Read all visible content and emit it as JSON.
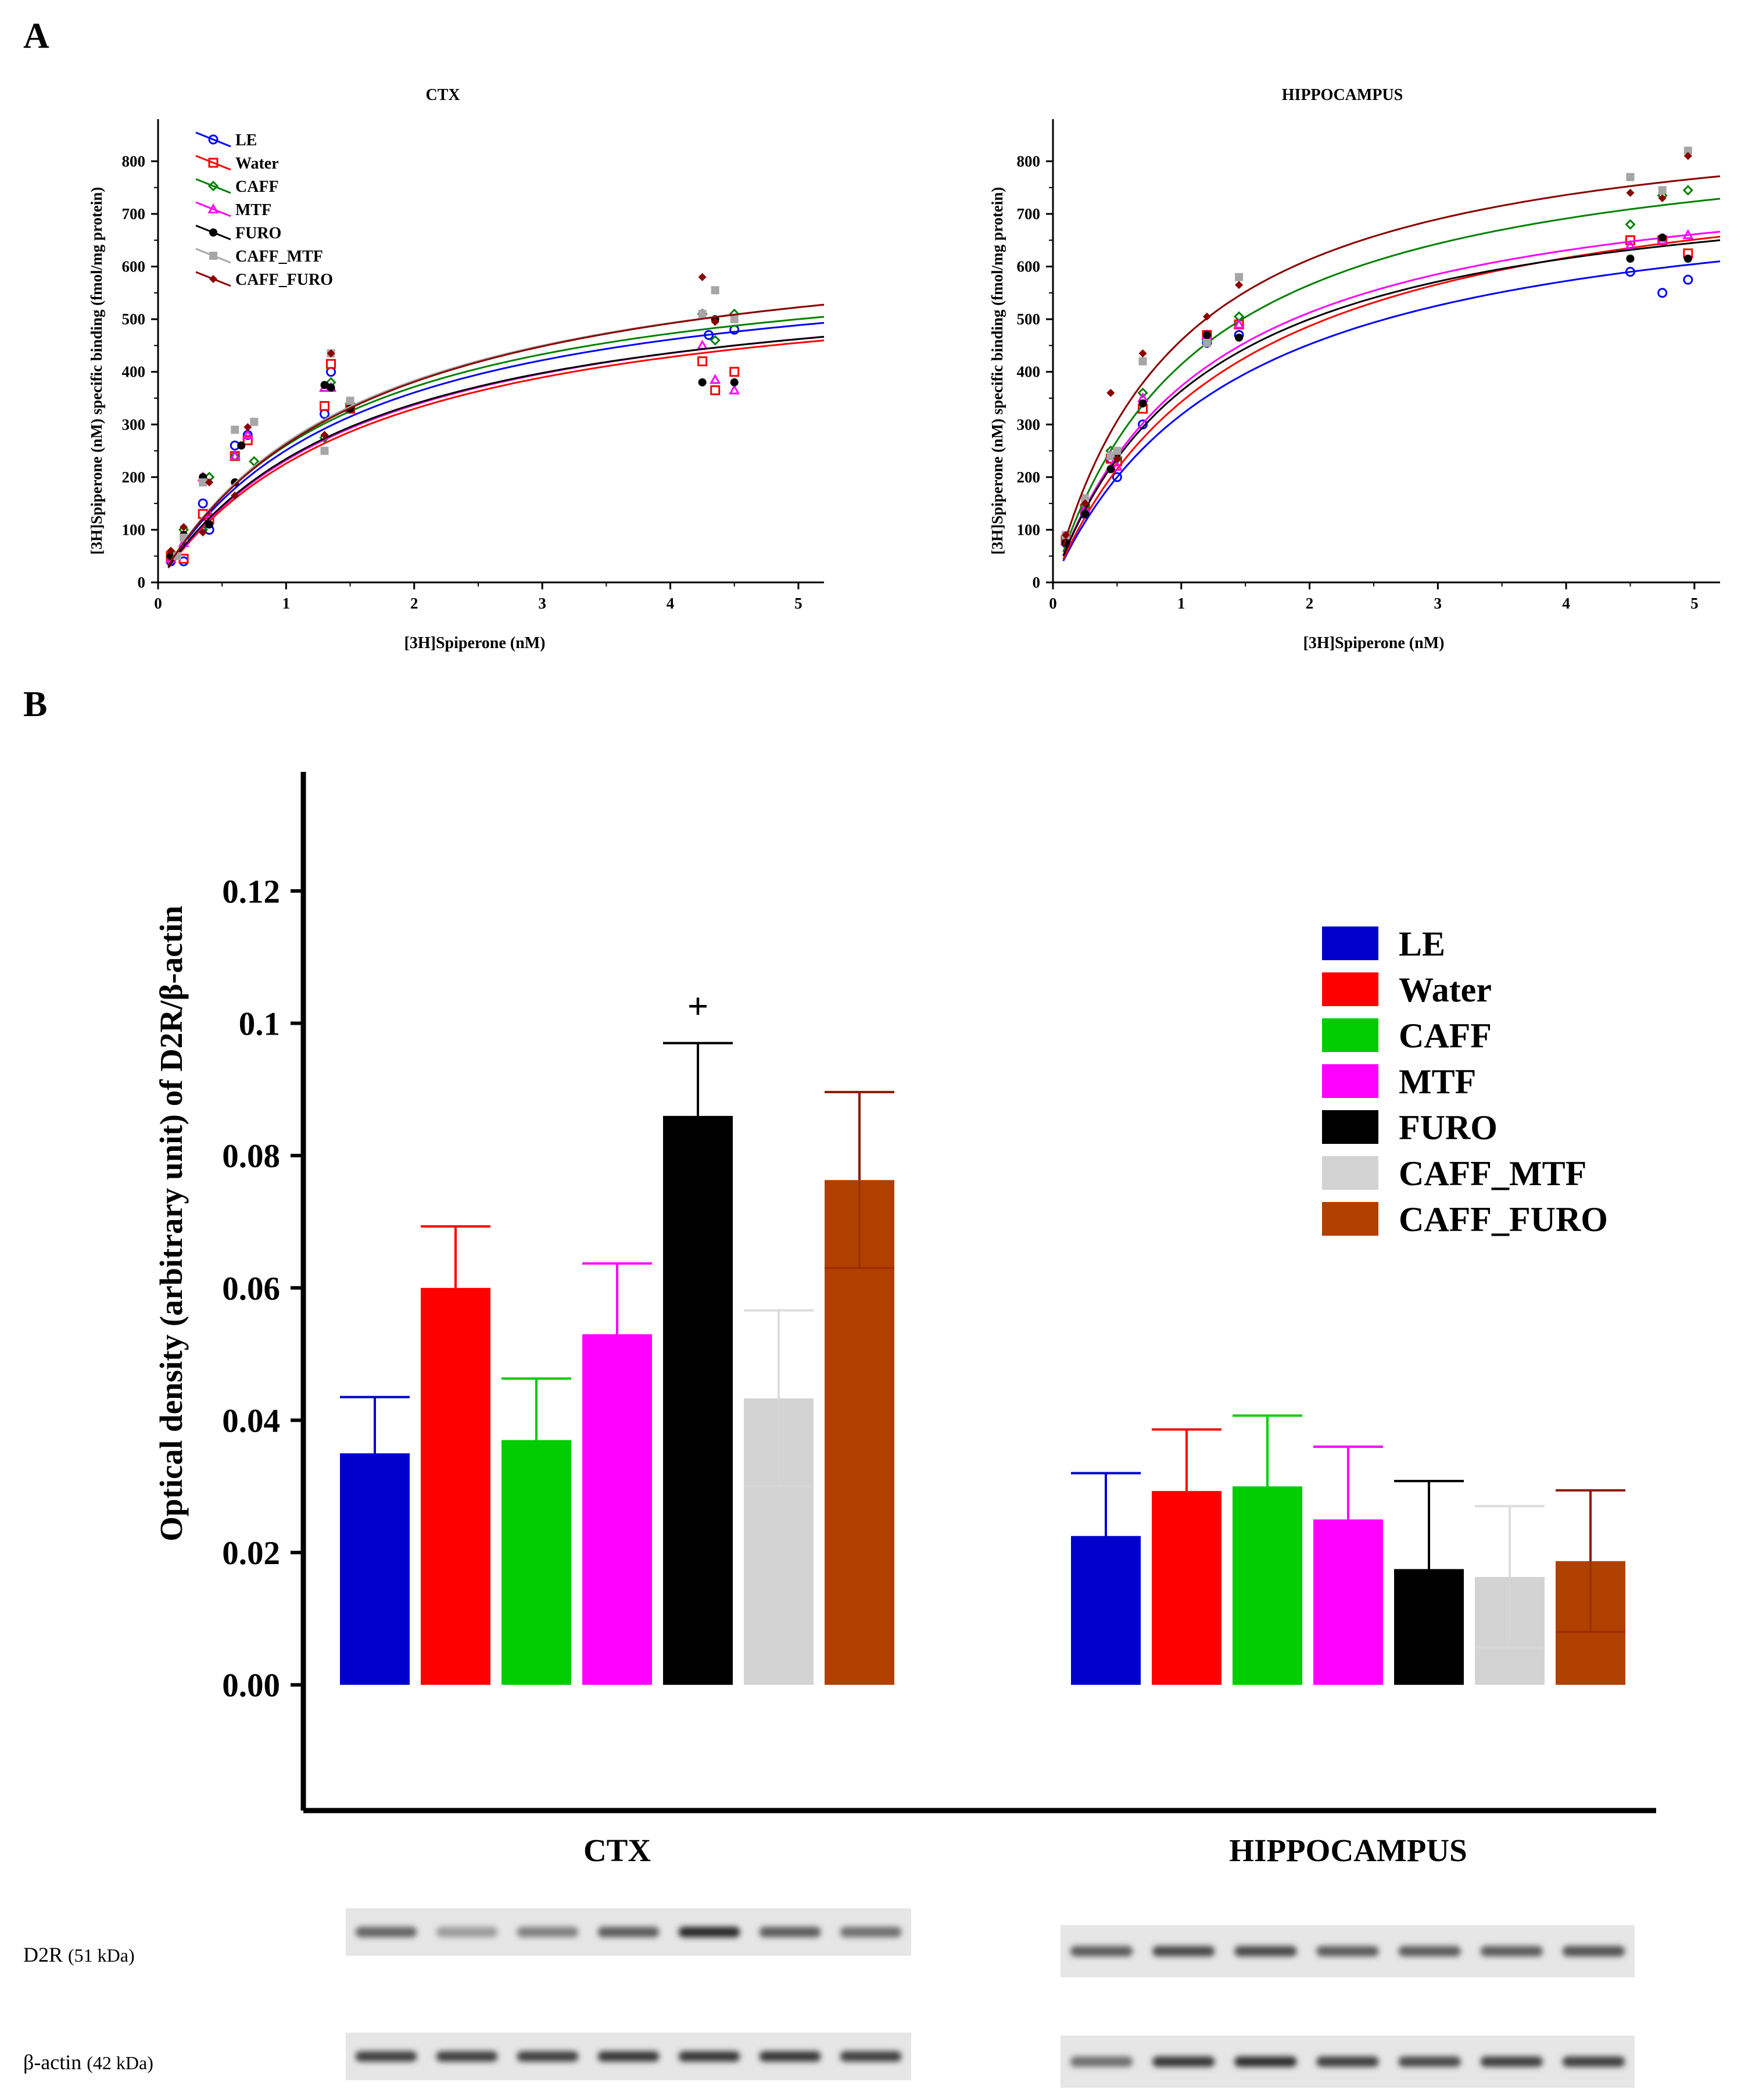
{
  "figure": {
    "panel_a_label": "A",
    "panel_b_label": "B"
  },
  "colors": {
    "LE": "#0000ff",
    "Water": "#ff0000",
    "CAFF": "#008000",
    "MTF": "#ff00ff",
    "FURO": "#000000",
    "CAFF_MTF": "#a6a6a6",
    "CAFF_FURO": "#8b0000",
    "bar_LE": "#0000cc",
    "bar_Water": "#ff0000",
    "bar_CAFF": "#00cc00",
    "bar_MTF": "#ff00ff",
    "bar_FURO": "#000000",
    "bar_CAFF_MTF": "#d3d3d3",
    "bar_CAFF_FURO": "#b04000"
  },
  "chart_data": [
    {
      "type": "scatter",
      "panel": "A",
      "title": "CTX",
      "xlabel": "[3H]Spiperone (nM)",
      "ylabel": "[3H]Spiperone (nM) specific binding (fmol/mg protein)",
      "xlim": [
        0,
        5.2
      ],
      "ylim": [
        0,
        880
      ],
      "xticks": [
        0,
        1,
        2,
        3,
        4,
        5
      ],
      "yticks": [
        0,
        100,
        200,
        300,
        400,
        500,
        600,
        700,
        800
      ],
      "legend_position": "top-left",
      "series": [
        {
          "name": "LE",
          "marker": "circle",
          "fit": {
            "bmax": 640,
            "kd": 1.55
          },
          "points": [
            [
              0.1,
              40
            ],
            [
              0.2,
              40
            ],
            [
              0.35,
              150
            ],
            [
              0.4,
              100
            ],
            [
              0.6,
              260
            ],
            [
              0.7,
              280
            ],
            [
              1.3,
              320
            ],
            [
              1.35,
              400
            ],
            [
              1.5,
              330
            ],
            [
              4.3,
              470
            ],
            [
              4.5,
              480
            ]
          ]
        },
        {
          "name": "Water",
          "marker": "square",
          "fit": {
            "bmax": 610,
            "kd": 1.7
          },
          "points": [
            [
              0.1,
              50
            ],
            [
              0.2,
              45
            ],
            [
              0.35,
              130
            ],
            [
              0.4,
              120
            ],
            [
              0.6,
              240
            ],
            [
              0.7,
              270
            ],
            [
              1.3,
              335
            ],
            [
              1.35,
              415
            ],
            [
              1.5,
              330
            ],
            [
              4.25,
              420
            ],
            [
              4.35,
              365
            ],
            [
              4.5,
              400
            ]
          ]
        },
        {
          "name": "CAFF",
          "marker": "diamond",
          "fit": {
            "bmax": 650,
            "kd": 1.5
          },
          "points": [
            [
              0.1,
              50
            ],
            [
              0.2,
              100
            ],
            [
              0.35,
              100
            ],
            [
              0.4,
              200
            ],
            [
              0.6,
              240
            ],
            [
              0.75,
              230
            ],
            [
              1.3,
              275
            ],
            [
              1.35,
              380
            ],
            [
              1.5,
              340
            ],
            [
              4.25,
              510
            ],
            [
              4.35,
              460
            ],
            [
              4.5,
              510
            ]
          ]
        },
        {
          "name": "MTF",
          "marker": "triangle",
          "fit": {
            "bmax": 615,
            "kd": 1.65
          },
          "points": [
            [
              0.1,
              45
            ],
            [
              0.2,
              75
            ],
            [
              0.35,
              200
            ],
            [
              0.4,
              130
            ],
            [
              0.6,
              240
            ],
            [
              0.7,
              280
            ],
            [
              1.3,
              370
            ],
            [
              1.35,
              370
            ],
            [
              4.25,
              450
            ],
            [
              4.35,
              385
            ],
            [
              4.5,
              365
            ]
          ]
        },
        {
          "name": "FURO",
          "marker": "dot",
          "fit": {
            "bmax": 610,
            "kd": 1.6
          },
          "points": [
            [
              0.1,
              50
            ],
            [
              0.2,
              90
            ],
            [
              0.35,
              200
            ],
            [
              0.4,
              110
            ],
            [
              0.6,
              190
            ],
            [
              0.65,
              260
            ],
            [
              1.3,
              375
            ],
            [
              1.35,
              370
            ],
            [
              1.5,
              330
            ],
            [
              4.25,
              380
            ],
            [
              4.35,
              500
            ],
            [
              4.5,
              380
            ]
          ]
        },
        {
          "name": "CAFF_MTF",
          "marker": "square-filled",
          "fit": {
            "bmax": 690,
            "kd": 1.6
          },
          "points": [
            [
              0.15,
              50
            ],
            [
              0.2,
              85
            ],
            [
              0.35,
              190
            ],
            [
              0.6,
              290
            ],
            [
              0.75,
              305
            ],
            [
              1.3,
              250
            ],
            [
              1.35,
              435
            ],
            [
              1.5,
              345
            ],
            [
              4.25,
              510
            ],
            [
              4.35,
              555
            ],
            [
              4.5,
              500
            ]
          ]
        },
        {
          "name": "CAFF_FURO",
          "marker": "diamond-filled",
          "fit": {
            "bmax": 695,
            "kd": 1.65
          },
          "points": [
            [
              0.1,
              60
            ],
            [
              0.2,
              105
            ],
            [
              0.35,
              95
            ],
            [
              0.4,
              190
            ],
            [
              0.6,
              165
            ],
            [
              0.7,
              295
            ],
            [
              1.3,
              280
            ],
            [
              1.35,
              435
            ],
            [
              4.25,
              580
            ],
            [
              4.35,
              495
            ]
          ]
        }
      ]
    },
    {
      "type": "scatter",
      "panel": "A",
      "title": "HIPPOCAMPUS",
      "xlabel": "[3H]Spiperone (nM)",
      "ylabel": "[3H]Spiperone (nM) specific binding (fmol/mg protein)",
      "xlim": [
        0,
        5.2
      ],
      "ylim": [
        0,
        880
      ],
      "xticks": [
        0,
        1,
        2,
        3,
        4,
        5
      ],
      "yticks": [
        0,
        100,
        200,
        300,
        400,
        500,
        600,
        700,
        800
      ],
      "series": [
        {
          "name": "LE",
          "marker": "circle",
          "fit": {
            "bmax": 780,
            "kd": 1.45
          },
          "points": [
            [
              0.1,
              75
            ],
            [
              0.25,
              130
            ],
            [
              0.45,
              235
            ],
            [
              0.5,
              200
            ],
            [
              0.7,
              300
            ],
            [
              1.2,
              455
            ],
            [
              1.45,
              470
            ],
            [
              4.5,
              590
            ],
            [
              4.75,
              550
            ],
            [
              4.95,
              575
            ]
          ]
        },
        {
          "name": "Water",
          "marker": "square",
          "fit": {
            "bmax": 840,
            "kd": 1.45
          },
          "points": [
            [
              0.1,
              80
            ],
            [
              0.25,
              140
            ],
            [
              0.45,
              235
            ],
            [
              0.5,
              230
            ],
            [
              0.7,
              330
            ],
            [
              1.2,
              470
            ],
            [
              1.45,
              490
            ],
            [
              4.5,
              650
            ],
            [
              4.75,
              650
            ],
            [
              4.95,
              625
            ]
          ]
        },
        {
          "name": "CAFF",
          "marker": "diamond",
          "fit": {
            "bmax": 890,
            "kd": 1.15
          },
          "points": [
            [
              0.1,
              85
            ],
            [
              0.25,
              145
            ],
            [
              0.45,
              250
            ],
            [
              0.5,
              235
            ],
            [
              0.7,
              360
            ],
            [
              1.2,
              460
            ],
            [
              1.45,
              505
            ],
            [
              4.5,
              680
            ],
            [
              4.75,
              735
            ],
            [
              4.95,
              745
            ]
          ]
        },
        {
          "name": "MTF",
          "marker": "triangle",
          "fit": {
            "bmax": 820,
            "kd": 1.2
          },
          "points": [
            [
              0.1,
              80
            ],
            [
              0.25,
              140
            ],
            [
              0.45,
              240
            ],
            [
              0.5,
              220
            ],
            [
              0.7,
              350
            ],
            [
              1.2,
              470
            ],
            [
              1.45,
              490
            ],
            [
              4.5,
              640
            ],
            [
              4.75,
              650
            ],
            [
              4.95,
              660
            ]
          ]
        },
        {
          "name": "FURO",
          "marker": "dot",
          "fit": {
            "bmax": 800,
            "kd": 1.2
          },
          "points": [
            [
              0.1,
              75
            ],
            [
              0.25,
              130
            ],
            [
              0.45,
              215
            ],
            [
              0.5,
              245
            ],
            [
              0.7,
              340
            ],
            [
              1.2,
              470
            ],
            [
              1.45,
              465
            ],
            [
              4.5,
              615
            ],
            [
              4.75,
              655
            ],
            [
              4.95,
              615
            ]
          ]
        },
        {
          "name": "CAFF_MTF",
          "marker": "square-filled",
          "fit": {
            "bmax": 920,
            "kd": 1.0
          },
          "points": [
            [
              0.1,
              90
            ],
            [
              0.25,
              160
            ],
            [
              0.45,
              240
            ],
            [
              0.5,
              250
            ],
            [
              0.7,
              420
            ],
            [
              1.2,
              455
            ],
            [
              1.45,
              580
            ],
            [
              4.5,
              770
            ],
            [
              4.75,
              745
            ],
            [
              4.95,
              820
            ]
          ]
        },
        {
          "name": "CAFF_FURO",
          "marker": "diamond-filled",
          "fit": {
            "bmax": 920,
            "kd": 1.0
          },
          "points": [
            [
              0.1,
              90
            ],
            [
              0.25,
              150
            ],
            [
              0.45,
              360
            ],
            [
              0.5,
              235
            ],
            [
              0.7,
              435
            ],
            [
              1.2,
              505
            ],
            [
              1.45,
              565
            ],
            [
              4.5,
              740
            ],
            [
              4.75,
              730
            ],
            [
              4.95,
              810
            ]
          ]
        }
      ]
    },
    {
      "type": "bar",
      "panel": "B",
      "ylabel": "Optical density (arbitrary unit) of D2R/β-actin",
      "ylim": [
        -0.019,
        0.138
      ],
      "yticks": [
        "0.00",
        "0.02",
        "0.04",
        "0.06",
        "0.08",
        "0.1",
        "0.12"
      ],
      "ytick_values": [
        0,
        0.02,
        0.04,
        0.06,
        0.08,
        0.1,
        0.12
      ],
      "categories": [
        "CTX",
        "HIPPOCAMPUS"
      ],
      "legend_position": "top-right",
      "series": [
        {
          "name": "LE",
          "values": [
            0.035,
            0.0225
          ],
          "errors": [
            0.0085,
            0.0095
          ]
        },
        {
          "name": "Water",
          "values": [
            0.06,
            0.0293
          ],
          "errors": [
            0.0093,
            0.0093
          ]
        },
        {
          "name": "CAFF",
          "values": [
            0.037,
            0.03
          ],
          "errors": [
            0.0093,
            0.0107
          ]
        },
        {
          "name": "MTF",
          "values": [
            0.053,
            0.025
          ],
          "errors": [
            0.0107,
            0.011
          ]
        },
        {
          "name": "FURO",
          "values": [
            0.086,
            0.0175
          ],
          "errors": [
            0.011,
            0.0133
          ]
        },
        {
          "name": "CAFF_MTF",
          "values": [
            0.0433,
            0.0163
          ],
          "errors": [
            0.0133,
            0.0107
          ]
        },
        {
          "name": "CAFF_FURO",
          "values": [
            0.0763,
            0.0187
          ],
          "errors": [
            0.0133,
            0.0107
          ]
        }
      ],
      "annotations": [
        {
          "category": "CTX",
          "series": "FURO",
          "text": "+"
        }
      ]
    }
  ],
  "blots": {
    "d2r_label": "D2R",
    "d2r_size": "(51 kDa)",
    "actin_label": "β-actin",
    "actin_size": "(42 kDa)",
    "ctx_d2r_intensity": [
      0.55,
      0.25,
      0.4,
      0.6,
      0.9,
      0.6,
      0.5
    ],
    "ctx_actin_intensity": [
      0.75,
      0.75,
      0.75,
      0.8,
      0.8,
      0.8,
      0.75
    ],
    "hip_d2r_intensity": [
      0.6,
      0.7,
      0.7,
      0.6,
      0.6,
      0.6,
      0.65
    ],
    "hip_actin_intensity": [
      0.5,
      0.8,
      0.85,
      0.75,
      0.7,
      0.75,
      0.75
    ]
  }
}
